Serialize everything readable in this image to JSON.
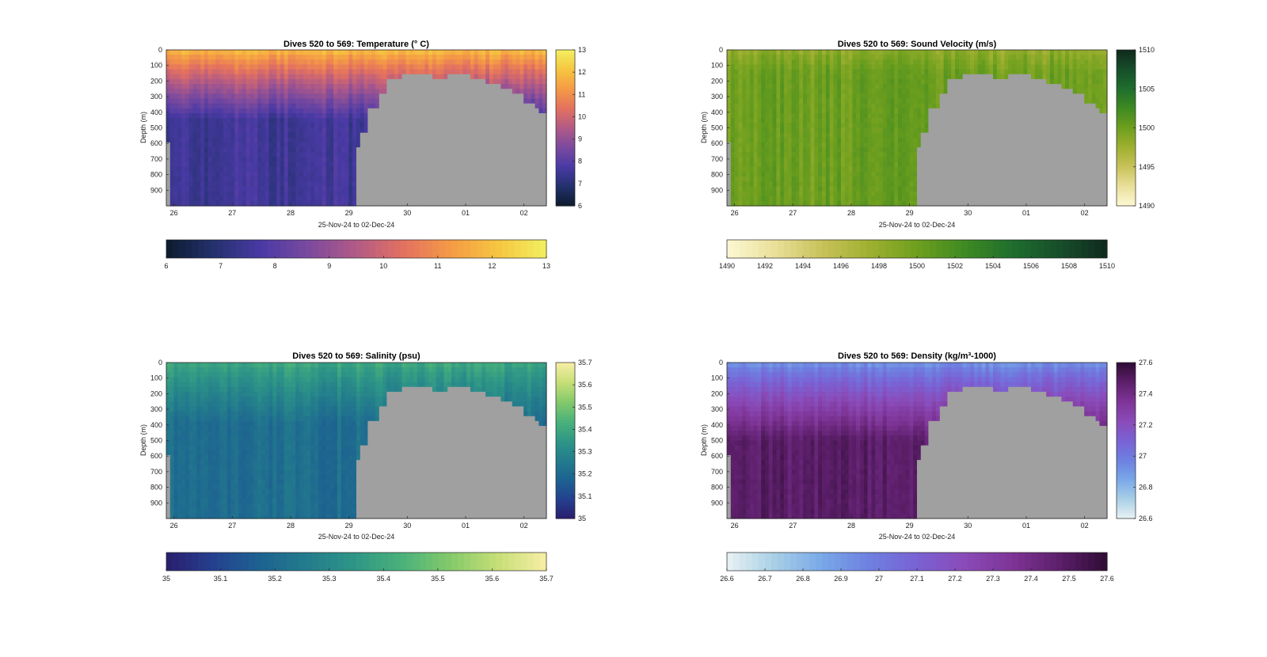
{
  "figure": {
    "background": "#ffffff",
    "mask_color": "#a0a0a0"
  },
  "chart_data": [
    {
      "id": "temperature",
      "type": "heatmap",
      "title": "Dives 520 to 569: Temperature (° C)",
      "xlabel": "25-Nov-24 to 02-Dec-24",
      "ylabel": "Depth (m)",
      "x_ticks": [
        "26",
        "27",
        "28",
        "29",
        "30",
        "01",
        "02"
      ],
      "y_ticks": [
        "0",
        "100",
        "200",
        "300",
        "400",
        "500",
        "600",
        "700",
        "800",
        "900"
      ],
      "ylim": [
        0,
        1000
      ],
      "colorbar_v_ticks": [
        "6",
        "7",
        "8",
        "9",
        "10",
        "11",
        "12",
        "13"
      ],
      "colorbar_h_ticks": [
        "6",
        "7",
        "8",
        "9",
        "10",
        "11",
        "12",
        "13"
      ],
      "clim": [
        6,
        13
      ],
      "colormap": [
        "#0d1b2e",
        "#23316e",
        "#4a3aa5",
        "#7b4a9e",
        "#b25a86",
        "#e3715f",
        "#f59b45",
        "#f6c640",
        "#f2f060"
      ],
      "profile": {
        "surface": 0.86,
        "bottom": 0.22,
        "noise": 0.05,
        "ramp": 0.45
      }
    },
    {
      "id": "sound_velocity",
      "type": "heatmap",
      "title": "Dives 520 to 569: Sound Velocity (m/s)",
      "xlabel": "25-Nov-24 to 02-Dec-24",
      "ylabel": "Depth (m)",
      "x_ticks": [
        "26",
        "27",
        "28",
        "29",
        "30",
        "01",
        "02"
      ],
      "y_ticks": [
        "0",
        "100",
        "200",
        "300",
        "400",
        "500",
        "600",
        "700",
        "800",
        "900"
      ],
      "ylim": [
        0,
        1000
      ],
      "colorbar_v_ticks": [
        "1490",
        "1495",
        "1500",
        "1505",
        "1510"
      ],
      "colorbar_h_ticks": [
        "1490",
        "1492",
        "1494",
        "1496",
        "1498",
        "1500",
        "1502",
        "1504",
        "1506",
        "1508",
        "1510"
      ],
      "clim": [
        1490,
        1510
      ],
      "colormap": [
        "#fdf8d4",
        "#e9e09a",
        "#c8c25a",
        "#9fb030",
        "#6e9f1e",
        "#3f8a22",
        "#1f6e2e",
        "#174e2a",
        "#0f2a1c"
      ],
      "profile": {
        "surface": 0.4,
        "bottom": 0.5,
        "noise": 0.06,
        "ramp": 0.15
      }
    },
    {
      "id": "salinity",
      "type": "heatmap",
      "title": "Dives 520 to 569: Salinity (psu)",
      "xlabel": "25-Nov-24 to 02-Dec-24",
      "ylabel": "Depth (m)",
      "x_ticks": [
        "26",
        "27",
        "28",
        "29",
        "30",
        "01",
        "02"
      ],
      "y_ticks": [
        "0",
        "100",
        "200",
        "300",
        "400",
        "500",
        "600",
        "700",
        "800",
        "900"
      ],
      "ylim": [
        0,
        1000
      ],
      "colorbar_v_ticks": [
        "35",
        "35.1",
        "35.2",
        "35.3",
        "35.4",
        "35.5",
        "35.6",
        "35.7"
      ],
      "colorbar_h_ticks": [
        "35",
        "35.1",
        "35.2",
        "35.3",
        "35.4",
        "35.5",
        "35.6",
        "35.7"
      ],
      "clim": [
        35,
        35.7
      ],
      "colormap": [
        "#2a1e6e",
        "#24418f",
        "#1d6391",
        "#237d8c",
        "#2f9786",
        "#4cb27a",
        "#86ca6a",
        "#c8df78",
        "#f7eea6"
      ],
      "profile": {
        "surface": 0.58,
        "bottom": 0.3,
        "noise": 0.05,
        "ramp": 0.4
      }
    },
    {
      "id": "density",
      "type": "heatmap",
      "title": "Dives 520 to 569: Density (kg/m³-1000)",
      "xlabel": "25-Nov-24 to 02-Dec-24",
      "ylabel": "Depth (m)",
      "x_ticks": [
        "26",
        "27",
        "28",
        "29",
        "30",
        "01",
        "02"
      ],
      "y_ticks": [
        "0",
        "100",
        "200",
        "300",
        "400",
        "500",
        "600",
        "700",
        "800",
        "900"
      ],
      "ylim": [
        0,
        1000
      ],
      "colorbar_v_ticks": [
        "26.6",
        "26.8",
        "27",
        "27.2",
        "27.4",
        "27.6"
      ],
      "colorbar_h_ticks": [
        "26.6",
        "26.7",
        "26.8",
        "26.9",
        "27",
        "27.1",
        "27.2",
        "27.3",
        "27.4",
        "27.5",
        "27.6"
      ],
      "clim": [
        26.6,
        27.6
      ],
      "colormap": [
        "#e9f2f4",
        "#a8cfe6",
        "#79a8e8",
        "#6e80e0",
        "#7a62d4",
        "#8a4bb8",
        "#7e3496",
        "#5c1f6a",
        "#2f0c34"
      ],
      "profile": {
        "surface": 0.3,
        "bottom": 0.88,
        "noise": 0.05,
        "ramp": 0.5
      }
    }
  ]
}
